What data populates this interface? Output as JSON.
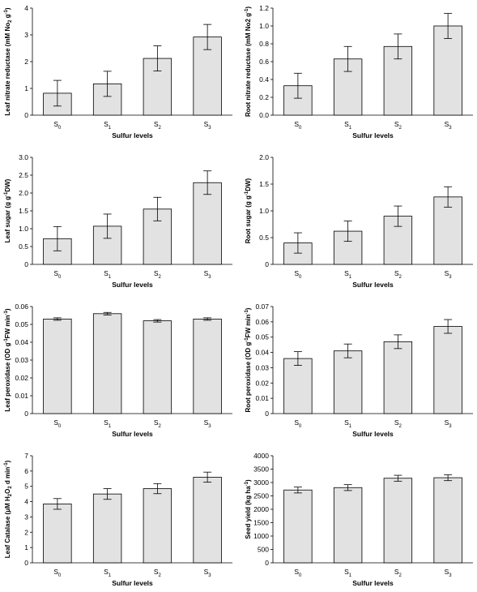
{
  "chart_data": [
    {
      "type": "bar",
      "categories": [
        "S0",
        "S1",
        "S2",
        "S3"
      ],
      "values": [
        0.82,
        1.17,
        2.12,
        2.92
      ],
      "errors": [
        0.48,
        0.47,
        0.47,
        0.47
      ],
      "ylim": [
        0,
        4
      ],
      "yticks": [
        "0",
        "1",
        "2",
        "3",
        "4"
      ],
      "ylabel_main": "Leaf nitrate reductase (mM No",
      "ylabel_sub": "2",
      "ylabel_tail": " g",
      "ylabel_sup": "-1",
      "ylabel_end": ")",
      "xlabel": "Sulfur levels"
    },
    {
      "type": "bar",
      "categories": [
        "S0",
        "S1",
        "S2",
        "S3"
      ],
      "values": [
        0.33,
        0.63,
        0.77,
        1.0
      ],
      "errors": [
        0.14,
        0.14,
        0.14,
        0.14
      ],
      "ylim": [
        0,
        1.2
      ],
      "yticks": [
        "0.0",
        "0.2",
        "0.4",
        "0.6",
        "0.8",
        "1.0",
        "1.2"
      ],
      "ylabel_main": "Root nitrate reductase (mM No2 g",
      "ylabel_sub": "",
      "ylabel_tail": "",
      "ylabel_sup": "-1",
      "ylabel_end": ")",
      "xlabel": "Sulfur levels"
    },
    {
      "type": "bar",
      "categories": [
        "S0",
        "S1",
        "S2",
        "S3"
      ],
      "values": [
        0.72,
        1.07,
        1.55,
        2.29
      ],
      "errors": [
        0.34,
        0.34,
        0.33,
        0.33
      ],
      "ylim": [
        0,
        3
      ],
      "yticks": [
        "0",
        "0.5",
        "1.0",
        "1.5",
        "2.0",
        "2.5",
        "3.0"
      ],
      "ylabel_main": "Leaf sugar (g g",
      "ylabel_sub": "",
      "ylabel_tail": "",
      "ylabel_sup": "-1",
      "ylabel_end": "DW)",
      "xlabel": "Sulfur levels"
    },
    {
      "type": "bar",
      "categories": [
        "S0",
        "S1",
        "S2",
        "S3"
      ],
      "values": [
        0.4,
        0.62,
        0.9,
        1.26
      ],
      "errors": [
        0.19,
        0.19,
        0.19,
        0.19
      ],
      "ylim": [
        0,
        2
      ],
      "yticks": [
        "0",
        "0.5",
        "1.0",
        "1.5",
        "2.0"
      ],
      "ylabel_main": "Root sugar (g g",
      "ylabel_sub": "",
      "ylabel_tail": "",
      "ylabel_sup": "-1",
      "ylabel_end": "DW)",
      "xlabel": "Sulfur levels"
    },
    {
      "type": "bar",
      "categories": [
        "S0",
        "S1",
        "S2",
        "S3"
      ],
      "values": [
        0.053,
        0.056,
        0.052,
        0.053
      ],
      "errors": [
        0.0007,
        0.0007,
        0.0007,
        0.0007
      ],
      "ylim": [
        0,
        0.06
      ],
      "yticks": [
        "0",
        "0.01",
        "0.02",
        "0.03",
        "0.04",
        "0.05",
        "0.06"
      ],
      "ylabel_main": "Leaf peroxidase (OD g",
      "ylabel_sub": "",
      "ylabel_tail": "",
      "ylabel_sup": "-1",
      "ylabel_end": "FW min",
      "ylabel_sup2": "-1",
      "ylabel_final": ")",
      "xlabel": "Sulfur levels"
    },
    {
      "type": "bar",
      "categories": [
        "S0",
        "S1",
        "S2",
        "S3"
      ],
      "values": [
        0.036,
        0.041,
        0.047,
        0.057
      ],
      "errors": [
        0.0045,
        0.0045,
        0.0045,
        0.0045
      ],
      "ylim": [
        0,
        0.07
      ],
      "yticks": [
        "0",
        "0.01",
        "0.02",
        "0.03",
        "0.04",
        "0.05",
        "0.06",
        "0.07"
      ],
      "ylabel_main": "Root peroxidase (OD g",
      "ylabel_sub": "",
      "ylabel_tail": "",
      "ylabel_sup": "-1",
      "ylabel_end": "FW min",
      "ylabel_sup2": "-1",
      "ylabel_final": ")",
      "xlabel": "Sulfur levels"
    },
    {
      "type": "bar",
      "categories": [
        "S0",
        "S1",
        "S2",
        "S3"
      ],
      "values": [
        3.85,
        4.5,
        4.85,
        5.6
      ],
      "errors": [
        0.35,
        0.35,
        0.33,
        0.33
      ],
      "ylim": [
        0,
        7
      ],
      "yticks": [
        "0",
        "1",
        "2",
        "3",
        "4",
        "5",
        "6",
        "7"
      ],
      "ylabel_main": "Leaf Catalase (μM H",
      "ylabel_sub": "2",
      "ylabel_tail": "O",
      "ylabel_sub2": "2",
      "ylabel_end": " d min",
      "ylabel_sup": "-1",
      "ylabel_final": ")",
      "xlabel": "Sulfur levels"
    },
    {
      "type": "bar",
      "categories": [
        "S0",
        "S1",
        "S2",
        "S3"
      ],
      "values": [
        2720,
        2810,
        3160,
        3180
      ],
      "errors": [
        110,
        110,
        110,
        110
      ],
      "ylim": [
        0,
        4000
      ],
      "yticks": [
        "0",
        "500",
        "1000",
        "1500",
        "2000",
        "2500",
        "3000",
        "3500",
        "4000"
      ],
      "ylabel_main": "Seed yield (kg ha",
      "ylabel_sub": "",
      "ylabel_tail": "",
      "ylabel_sup": "-1",
      "ylabel_end": ")",
      "xlabel": "Sulfur levels"
    }
  ]
}
